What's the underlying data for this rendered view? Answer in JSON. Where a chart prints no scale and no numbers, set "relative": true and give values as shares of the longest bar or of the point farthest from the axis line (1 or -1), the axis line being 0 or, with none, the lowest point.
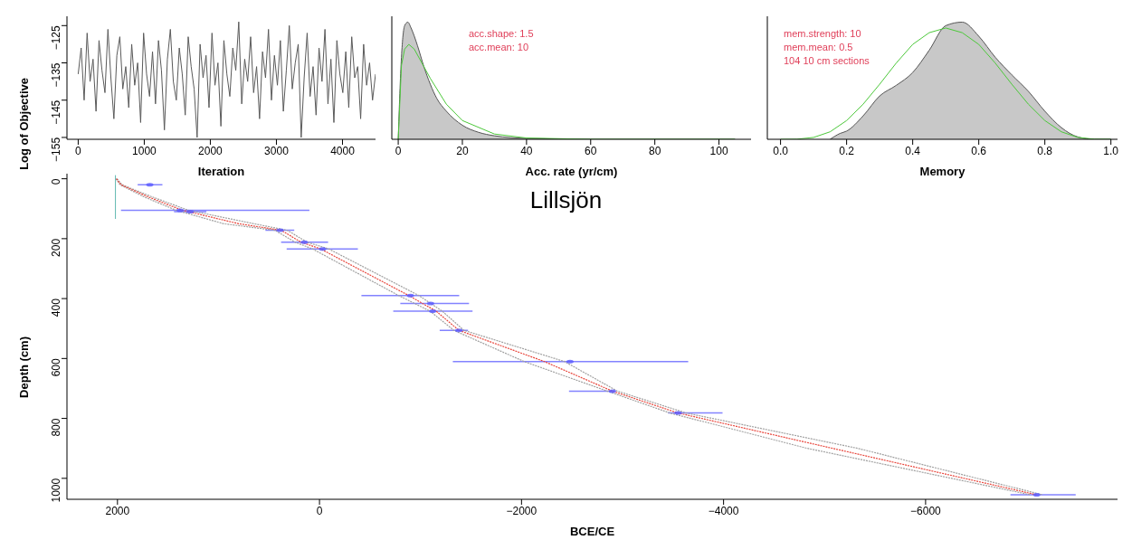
{
  "chart_data": [
    {
      "type": "line",
      "xlabel": "Iteration",
      "ylabel": "Log of Objective",
      "xlim": [
        -170,
        4500
      ],
      "ylim": [
        -155.5,
        -122.5
      ],
      "xticks": [
        0,
        1000,
        2000,
        3000,
        4000
      ],
      "yticks": [
        -155,
        -145,
        -135,
        -125
      ],
      "grid": false,
      "legend": false,
      "marker": "none",
      "series": [
        {
          "color": "#5a5a5a",
          "x": [
            0,
            45,
            90,
            135,
            180,
            225,
            270,
            315,
            360,
            405,
            450,
            495,
            540,
            585,
            630,
            675,
            720,
            765,
            810,
            855,
            900,
            945,
            990,
            1035,
            1080,
            1125,
            1170,
            1215,
            1260,
            1305,
            1350,
            1395,
            1440,
            1485,
            1530,
            1575,
            1620,
            1665,
            1710,
            1755,
            1800,
            1845,
            1890,
            1935,
            1980,
            2025,
            2070,
            2115,
            2160,
            2205,
            2250,
            2295,
            2340,
            2385,
            2430,
            2475,
            2520,
            2565,
            2610,
            2655,
            2700,
            2745,
            2790,
            2835,
            2880,
            2925,
            2970,
            3015,
            3060,
            3105,
            3150,
            3195,
            3240,
            3285,
            3330,
            3375,
            3420,
            3465,
            3510,
            3555,
            3600,
            3645,
            3690,
            3735,
            3780,
            3825,
            3870,
            3915,
            3960,
            4005,
            4050,
            4095,
            4140,
            4185,
            4230,
            4275,
            4320,
            4365,
            4410,
            4455,
            4500
          ],
          "values": [
            -138,
            -131,
            -145,
            -127,
            -140,
            -134,
            -148,
            -129,
            -137,
            -143,
            -126,
            -139,
            -150,
            -133,
            -128,
            -142,
            -136,
            -147,
            -130,
            -141,
            -135,
            -151,
            -127,
            -138,
            -144,
            -132,
            -146,
            -129,
            -137,
            -153,
            -134,
            -126,
            -140,
            -145,
            -131,
            -138,
            -149,
            -128,
            -136,
            -142,
            -155,
            -130,
            -139,
            -133,
            -147,
            -127,
            -141,
            -135,
            -152,
            -129,
            -138,
            -144,
            -131,
            -137,
            -124,
            -146,
            -134,
            -140,
            -128,
            -143,
            -136,
            -150,
            -132,
            -139,
            -126,
            -145,
            -133,
            -141,
            -129,
            -148,
            -137,
            -125,
            -142,
            -135,
            -130,
            -155,
            -139,
            -127,
            -144,
            -136,
            -149,
            -131,
            -140,
            -126,
            -146,
            -134,
            -151,
            -129,
            -138,
            -143,
            -132,
            -147,
            -128,
            -139,
            -136,
            -150,
            -130,
            -141,
            -135,
            -145,
            -138
          ]
        }
      ]
    },
    {
      "type": "area",
      "xlabel": "Acc. rate (yr/cm)",
      "relative": true,
      "xlim": [
        -2,
        110
      ],
      "xticks": [
        0,
        20,
        40,
        60,
        80,
        100
      ],
      "grid": false,
      "legend": false,
      "marker": "none",
      "annotations": [
        "acc.shape:  1.5",
        "acc.mean:  10"
      ],
      "series": [
        {
          "color": "#c8c8c8",
          "x": [
            0,
            1,
            2,
            3,
            4,
            6,
            8,
            10,
            12,
            15,
            20,
            25,
            30,
            40,
            60,
            105
          ],
          "values": [
            0,
            0.7,
            0.97,
            1,
            0.95,
            0.8,
            0.62,
            0.47,
            0.35,
            0.24,
            0.12,
            0.06,
            0.03,
            0.008,
            0,
            0
          ]
        },
        {
          "type": "line",
          "color": "#4cc83a",
          "x": [
            0,
            1,
            2,
            3.3,
            5,
            8,
            10,
            15,
            20,
            30,
            40,
            60,
            105
          ],
          "values": [
            0,
            0.63,
            0.77,
            0.81,
            0.77,
            0.62,
            0.52,
            0.3,
            0.16,
            0.045,
            0.011,
            0,
            0
          ]
        }
      ]
    },
    {
      "type": "area",
      "xlabel": "Memory",
      "relative": true,
      "xlim": [
        -0.04,
        1.02
      ],
      "xticks": [
        {
          "value": 0,
          "label": "0.0"
        },
        0.2,
        0.4,
        0.6,
        0.8,
        {
          "value": 1,
          "label": "1.0"
        }
      ],
      "grid": false,
      "legend": false,
      "marker": "none",
      "annotations": [
        "mem.strength: 10",
        "mem.mean: 0.5",
        "104 10 cm sections"
      ],
      "series": [
        {
          "color": "#c8c8c8",
          "x": [
            0.15,
            0.18,
            0.2,
            0.25,
            0.3,
            0.35,
            0.4,
            0.45,
            0.5,
            0.55,
            0.6,
            0.65,
            0.7,
            0.75,
            0.8,
            0.85,
            0.9,
            0.95,
            1
          ],
          "values": [
            0,
            0.05,
            0.07,
            0.2,
            0.37,
            0.46,
            0.57,
            0.76,
            0.97,
            1,
            0.88,
            0.7,
            0.55,
            0.41,
            0.24,
            0.1,
            0.02,
            0,
            0
          ]
        },
        {
          "type": "line",
          "color": "#4cc83a",
          "x": [
            0,
            0.05,
            0.1,
            0.15,
            0.2,
            0.25,
            0.3,
            0.35,
            0.4,
            0.45,
            0.5,
            0.55,
            0.6,
            0.65,
            0.7,
            0.75,
            0.8,
            0.85,
            0.9,
            0.95,
            1
          ],
          "values": [
            0,
            0.001,
            0.016,
            0.064,
            0.16,
            0.3,
            0.47,
            0.65,
            0.81,
            0.91,
            0.95,
            0.91,
            0.81,
            0.65,
            0.47,
            0.3,
            0.16,
            0.064,
            0.016,
            0.001,
            0
          ]
        }
      ]
    },
    {
      "type": "line",
      "title": "Lillsjön",
      "xlabel": "BCE/CE",
      "ylabel": "Depth (cm)",
      "xlim": [
        2500,
        -7900
      ],
      "ylim": [
        1070,
        -17
      ],
      "xticks": [
        2000,
        0,
        -2000,
        -4000,
        -6000
      ],
      "yticks": [
        0,
        200,
        400,
        600,
        800,
        1000
      ],
      "grid": false,
      "legend": false,
      "marker": "none",
      "series": [
        {
          "color": "#a0a0a0",
          "line_style": "dotted",
          "x": [
            2015,
            1975,
            1740,
            1420,
            950,
            440,
            240,
            70,
            -785,
            -1095,
            -1330,
            -2025,
            -2850,
            -3470,
            -4830,
            -7040
          ],
          "values": [
            0,
            20,
            60,
            105,
            150,
            172,
            212,
            234,
            390,
            442,
            506,
            610,
            709,
            782,
            900,
            1055
          ]
        },
        {
          "color": "#a0a0a0",
          "line_style": "dotted",
          "x": [
            2005,
            1955,
            1660,
            1300,
            650,
            320,
            120,
            -90,
            -985,
            -1215,
            -1430,
            -2425,
            -2950,
            -3630,
            -5330,
            -7160
          ],
          "values": [
            0,
            20,
            60,
            105,
            150,
            172,
            212,
            234,
            390,
            442,
            506,
            610,
            709,
            782,
            900,
            1055
          ]
        },
        {
          "color": "#e8463c",
          "line_style": "dotted",
          "x": [
            2010,
            1965,
            1700,
            1360,
            800,
            380,
            180,
            -10,
            -885,
            -1155,
            -1380,
            -2225,
            -2900,
            -3550,
            -5080,
            -7100
          ],
          "values": [
            0,
            20,
            60,
            105,
            150,
            172,
            212,
            234,
            390,
            442,
            506,
            610,
            709,
            782,
            900,
            1055
          ]
        },
        {
          "color": "#5fb8b0",
          "line_style": "solid",
          "x": [
            2020,
            2020
          ],
          "values": [
            -12,
            134
          ]
        },
        {
          "type": "scatter",
          "color": "#5a5aff",
          "marker": "circle",
          "x": [
            1680,
            1380,
            1280,
            390,
            150,
            -30,
            -900,
            -1100,
            -1120,
            -1380,
            -2480,
            -2900,
            -3550,
            -7100
          ],
          "values": [
            20,
            105,
            110,
            172,
            212,
            234,
            390,
            416,
            442,
            506,
            610,
            709,
            782,
            1055
          ],
          "xerrors": [
            [
              1555,
              1800
            ],
            [
              100,
              1965
            ],
            [
              1120,
              1440
            ],
            [
              250,
              535
            ],
            [
              -85,
              380
            ],
            [
              -380,
              325
            ],
            [
              -1383,
              -415
            ],
            [
              -1480,
              -800
            ],
            [
              -1515,
              -730
            ],
            [
              -1470,
              -1190
            ],
            [
              -3650,
              -1320
            ],
            [
              -2920,
              -2470
            ],
            [
              -3990,
              -3450
            ],
            [
              -7486,
              -6840
            ]
          ]
        }
      ]
    }
  ]
}
